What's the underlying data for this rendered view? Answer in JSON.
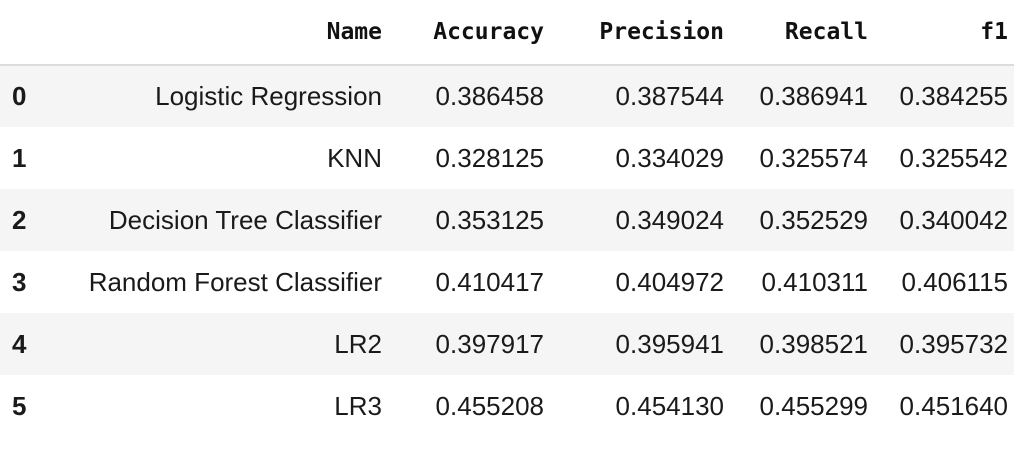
{
  "table": {
    "columns": [
      "",
      "Name",
      "Accuracy",
      "Precision",
      "Recall",
      "f1"
    ],
    "rows": [
      [
        "0",
        "Logistic Regression",
        "0.386458",
        "0.387544",
        "0.386941",
        "0.384255"
      ],
      [
        "1",
        "KNN",
        "0.328125",
        "0.334029",
        "0.325574",
        "0.325542"
      ],
      [
        "2",
        "Decision Tree Classifier",
        "0.353125",
        "0.349024",
        "0.352529",
        "0.340042"
      ],
      [
        "3",
        "Random Forest Classifier",
        "0.410417",
        "0.404972",
        "0.410311",
        "0.406115"
      ],
      [
        "4",
        "LR2",
        "0.397917",
        "0.395941",
        "0.398521",
        "0.395732"
      ],
      [
        "5",
        "LR3",
        "0.455208",
        "0.454130",
        "0.455299",
        "0.451640"
      ]
    ]
  },
  "colors": {
    "striped_row": "#f5f5f5",
    "header_border": "#dcdcdc",
    "text": "#1a1a1a"
  }
}
